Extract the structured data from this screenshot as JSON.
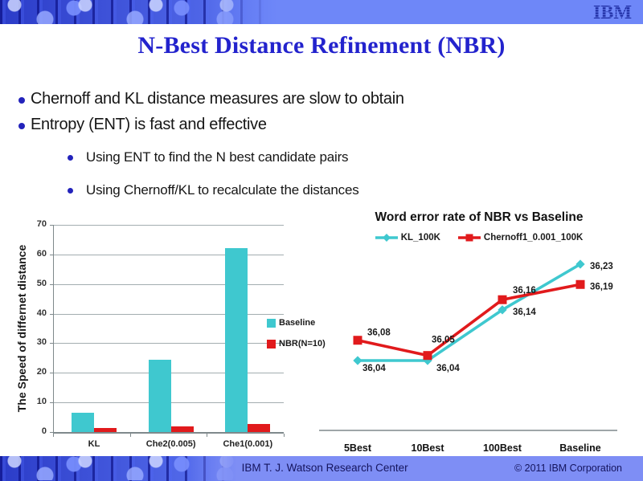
{
  "title": "N-Best Distance Refinement (NBR)",
  "header": {
    "logo_text": "IBM"
  },
  "bullets": [
    {
      "level": 1,
      "text": "Chernoff and KL distance measures are slow to obtain"
    },
    {
      "level": 1,
      "text": "Entropy (ENT) is fast and effective"
    },
    {
      "level": 2,
      "text": "Using ENT to find the N best candidate pairs"
    },
    {
      "level": 2,
      "text": "Using Chernoff/KL to recalculate the distances"
    }
  ],
  "footer": {
    "center_text": "IBM T. J. Watson Research Center",
    "right_text": "© 2011 IBM Corporation"
  },
  "colors": {
    "cyan": "#3fc8cf",
    "red": "#e11a1c",
    "grid": "#a3adb0",
    "axis": "#7f898c",
    "title_blue": "#2323cd",
    "header_band": "#6e87f8",
    "footer_band": "#7e8ef5",
    "footer_text": "#15155e",
    "bullet_dot": "#2323bb"
  },
  "chart_data": [
    {
      "type": "bar",
      "title": "",
      "ylabel": "The Speed of differnet distance",
      "xlabel": "",
      "categories": [
        "KL",
        "Che2(0.005)",
        "Che1(0.001)"
      ],
      "series": [
        {
          "name": "Baseline",
          "color_key": "cyan",
          "values": [
            6.5,
            24.5,
            62
          ]
        },
        {
          "name": "NBR(N=10)",
          "color_key": "red",
          "values": [
            1.4,
            2.0,
            2.6
          ]
        }
      ],
      "ylim": [
        0,
        70
      ],
      "yticks": [
        0,
        10,
        20,
        30,
        40,
        50,
        60,
        70
      ],
      "grid": true,
      "legend_position": "right"
    },
    {
      "type": "line",
      "title": "Word error rate of NBR vs Baseline",
      "categories": [
        "5Best",
        "10Best",
        "100Best",
        "Baseline"
      ],
      "series": [
        {
          "name": "KL_100K",
          "color_key": "cyan",
          "marker": "diamond",
          "values": [
            36.04,
            36.04,
            36.14,
            36.23
          ],
          "labels": [
            "36,04",
            "36,04",
            "36,14",
            "36,23"
          ]
        },
        {
          "name": "Chernoff1_0.001_100K",
          "color_key": "red",
          "marker": "square",
          "values": [
            36.08,
            36.05,
            36.16,
            36.19
          ],
          "labels": [
            "36,08",
            "36,05",
            "36,16",
            "36,19"
          ]
        }
      ],
      "y_axis_visible": false,
      "grid": false,
      "legend_position": "top",
      "value_format": "comma-decimal"
    }
  ]
}
